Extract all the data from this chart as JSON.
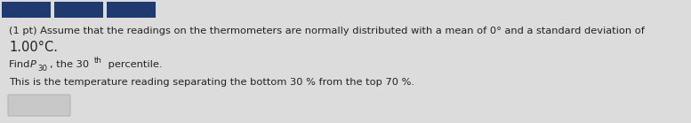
{
  "bg_color": "#dcdcdc",
  "header_block_color": "#1e3a70",
  "header_blocks": 3,
  "line1": "(1 pt) Assume that the readings on the thermometers are normally distributed with a mean of 0° and a standard deviation of",
  "line2": "1.00°C.",
  "line3_find": "Find ",
  "line3_P": "P",
  "line3_sub": "30",
  "line3_comma": ", the 30",
  "line3_sup": "th",
  "line3_end": " percentile.",
  "line4": "This is the temperature reading separating the bottom 30 % from the top 70 %.",
  "text_color": "#222222",
  "text_fontsize": 8.2,
  "line2_fontsize": 10.5,
  "ans_box_color": "#c8c8c8",
  "ans_box_edge": "#b0b0b0"
}
